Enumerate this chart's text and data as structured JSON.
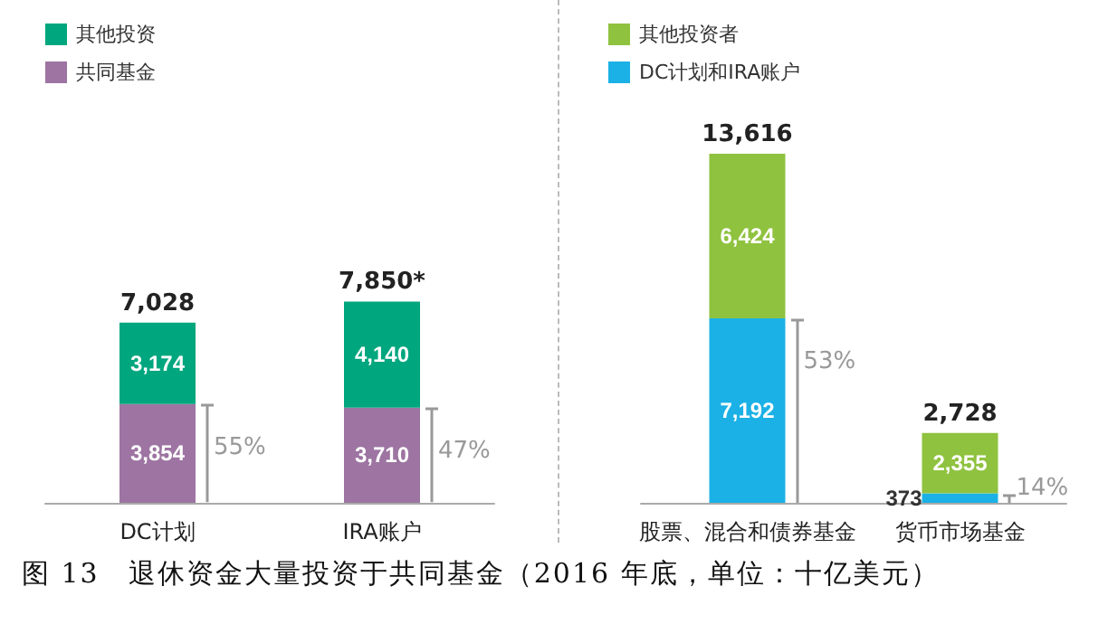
{
  "chart_data": [
    {
      "type": "bar",
      "stacked": true,
      "categories": [
        "DC计划",
        "IRA账户"
      ],
      "series": [
        {
          "name": "共同基金",
          "color": "#9d74a2",
          "values": [
            3854,
            3710
          ],
          "value_labels": [
            "3,854",
            "3,710"
          ]
        },
        {
          "name": "其他投资",
          "color": "#00a67e",
          "values": [
            3174,
            4140
          ],
          "value_labels": [
            "3,174",
            "4,140"
          ]
        }
      ],
      "totals": [
        "7,028",
        "7,850*"
      ],
      "legend": "top left",
      "annotations": [
        {
          "text": "55%",
          "x": "DC计划",
          "y": 3854
        },
        {
          "text": "47%",
          "x": "IRA账户",
          "y": 3710
        },
        "图 13　退休资金大量投资于共同基金（2016 年底，单位：十亿美元）"
      ]
    },
    {
      "type": "bar",
      "stacked": true,
      "categories": [
        "股票、混合和债券基金",
        "货币市场基金"
      ],
      "series": [
        {
          "name": "DC计划和IRA账户",
          "color": "#1bb1e6",
          "values": [
            7192,
            373
          ],
          "value_labels": [
            "7,192",
            "373"
          ]
        },
        {
          "name": "其他投资者",
          "color": "#8fc23f",
          "values": [
            6424,
            2355
          ],
          "value_labels": [
            "6,424",
            "2,355"
          ]
        }
      ],
      "totals": [
        "13,616",
        "2,728"
      ],
      "legend": "top left",
      "annotations": [
        {
          "text": "53%",
          "x": "股票、混合和债券基金",
          "y": 7192
        },
        {
          "text": "14%",
          "x": "货币市场基金",
          "y": 373
        }
      ]
    }
  ]
}
